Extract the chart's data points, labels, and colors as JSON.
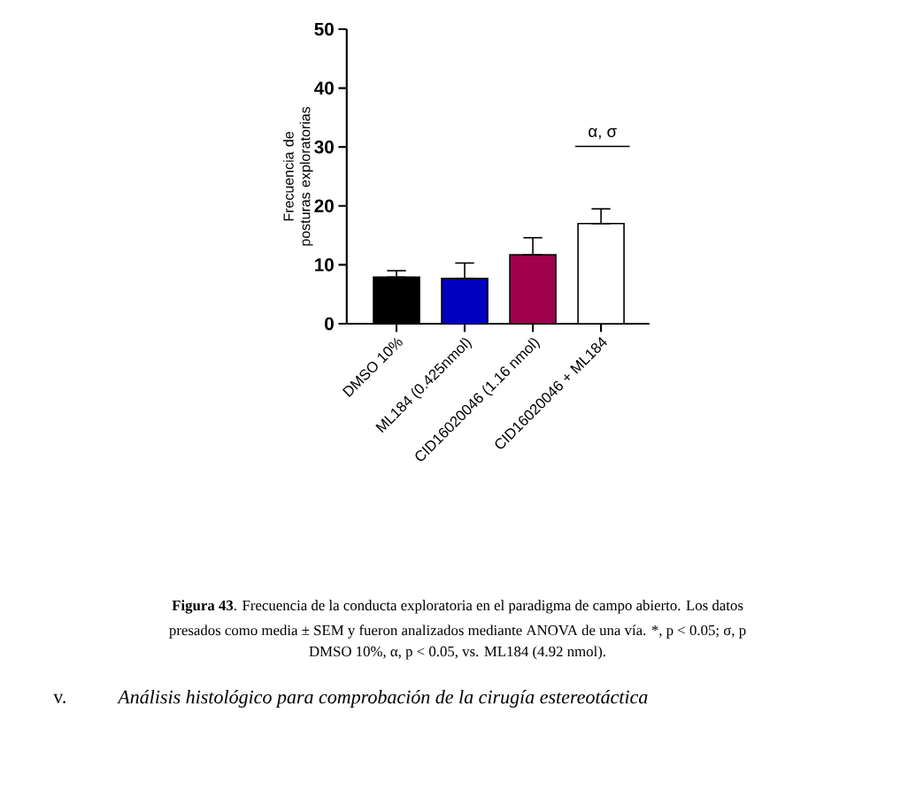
{
  "chart_data": {
    "type": "bar",
    "ylabel": "Frecuencia de posturas exploratorias",
    "categories": [
      "DMSO 10%",
      "ML184 (0.425nmol)",
      "CID16020046 (1.16 nmol)",
      "CID16020046 + ML184"
    ],
    "values": [
      7.9,
      7.7,
      11.7,
      17.0
    ],
    "errors": [
      [
        7.9,
        9.0
      ],
      [
        7.7,
        10.3
      ],
      [
        11.7,
        14.6
      ],
      [
        17.0,
        19.5
      ]
    ],
    "colors": [
      "#000000",
      "#0000c0",
      "#a0004c",
      "#ffffff"
    ],
    "ylim": [
      0,
      50
    ],
    "yticks": [
      0,
      10,
      20,
      30,
      40,
      50
    ],
    "grid": false,
    "annotations": [
      "α, σ",
      "**Figura 43**. Frecuencia de la conducta exploratoria en el paradigma de campo abierto. Los datos",
      "presados como media ± SEM y fueron analizados mediante ANOVA de una vía. *, p < 0.05; σ, p",
      "DMSO 10%, α, p < 0.05, vs. ML184 (4.92 nmol).",
      "v.",
      "*Análisis histológico para comprobación de la cirugía estereotáctica*"
    ]
  }
}
